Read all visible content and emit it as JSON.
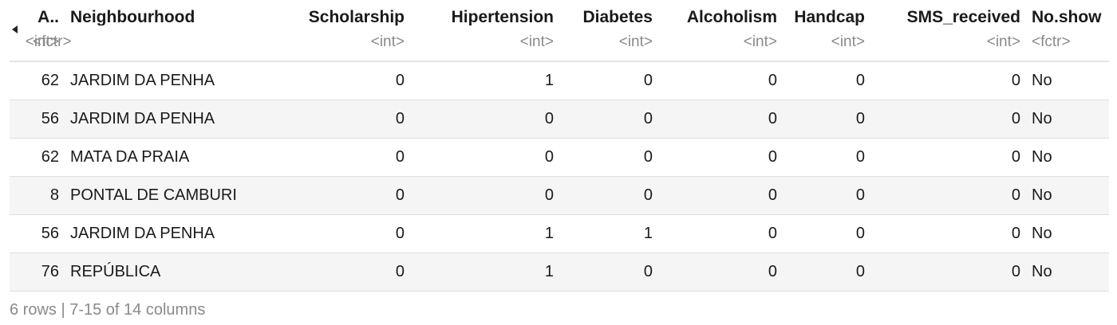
{
  "nav": {
    "prev_icon": "triangle-left-icon"
  },
  "columns": [
    {
      "name": "A..",
      "type": "<int>"
    },
    {
      "name": "Neighbourhood",
      "type": "<fctr>"
    },
    {
      "name": "Scholarship",
      "type": "<int>"
    },
    {
      "name": "Hipertension",
      "type": "<int>"
    },
    {
      "name": "Diabetes",
      "type": "<int>"
    },
    {
      "name": "Alcoholism",
      "type": "<int>"
    },
    {
      "name": "Handcap",
      "type": "<int>"
    },
    {
      "name": "SMS_received",
      "type": "<int>"
    },
    {
      "name": "No.show",
      "type": "<fctr>"
    }
  ],
  "rows": [
    [
      "62",
      "JARDIM DA PENHA",
      "0",
      "1",
      "0",
      "0",
      "0",
      "0",
      "No"
    ],
    [
      "56",
      "JARDIM DA PENHA",
      "0",
      "0",
      "0",
      "0",
      "0",
      "0",
      "No"
    ],
    [
      "62",
      "MATA DA PRAIA",
      "0",
      "0",
      "0",
      "0",
      "0",
      "0",
      "No"
    ],
    [
      "8",
      "PONTAL DE CAMBURI",
      "0",
      "0",
      "0",
      "0",
      "0",
      "0",
      "No"
    ],
    [
      "56",
      "JARDIM DA PENHA",
      "0",
      "1",
      "1",
      "0",
      "0",
      "0",
      "No"
    ],
    [
      "76",
      "REPÚBLICA",
      "0",
      "1",
      "0",
      "0",
      "0",
      "0",
      "No"
    ]
  ],
  "footer": "6 rows | 7-15 of 14 columns"
}
